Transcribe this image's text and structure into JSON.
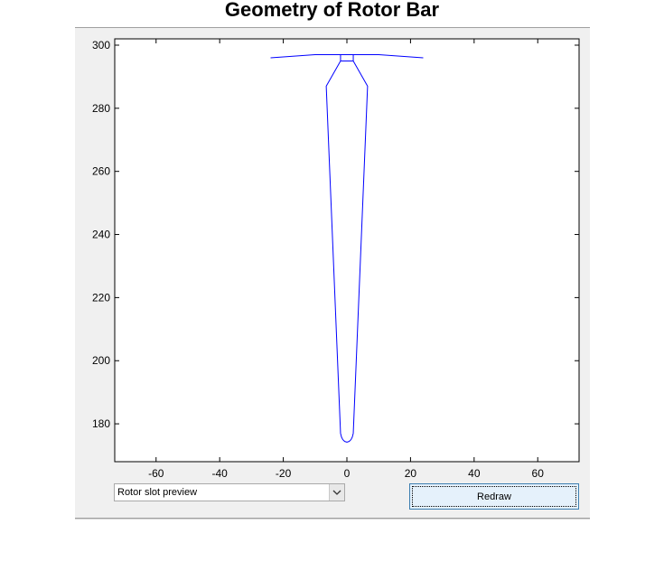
{
  "window": {
    "title": "Geometry of Rotor Bar"
  },
  "controls": {
    "dropdown_value": "Rotor slot preview",
    "redraw_label": "Redraw"
  },
  "colors": {
    "line": "#0000ff",
    "panel": "#f0f0f0",
    "button_face": "#e5f1fb"
  },
  "chart_data": {
    "type": "line",
    "title": "Geometry of Rotor Bar",
    "xlabel": "",
    "ylabel": "",
    "xlim": [
      -73,
      73
    ],
    "ylim": [
      168,
      302
    ],
    "x_ticks": [
      -60,
      -40,
      -20,
      0,
      20,
      40,
      60
    ],
    "y_ticks": [
      180,
      200,
      220,
      240,
      260,
      280,
      300
    ],
    "grid": false,
    "series": [
      {
        "x": [
          -24,
          -10,
          -2,
          2,
          10,
          24
        ],
        "y": [
          296,
          297,
          297,
          297,
          297,
          296
        ]
      },
      {
        "x": [
          -2,
          -2,
          2,
          2
        ],
        "y": [
          297,
          295,
          295,
          297
        ]
      },
      {
        "x": [
          -2,
          -6.5,
          -2,
          -1.7,
          -1.3,
          -0.7,
          0,
          0.7,
          1.3,
          1.7,
          2,
          6.5,
          2
        ],
        "y": [
          295,
          287,
          177,
          175.8,
          175,
          174.4,
          174.2,
          174.4,
          175,
          175.8,
          177,
          287,
          295
        ]
      }
    ]
  }
}
